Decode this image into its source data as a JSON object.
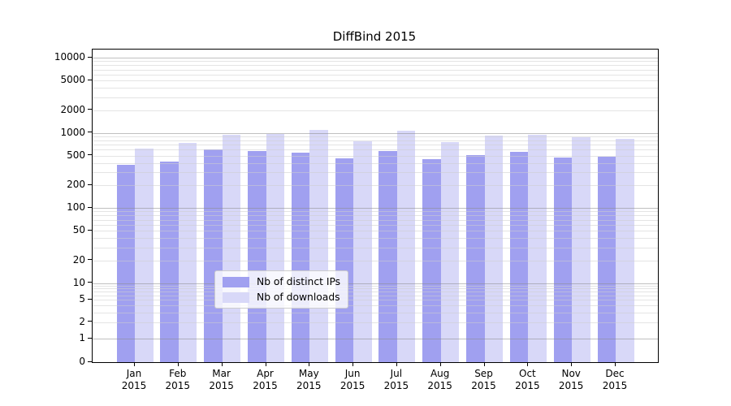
{
  "title": "DiffBind 2015",
  "legend": {
    "items": [
      {
        "label": "Nb of distinct IPs",
        "color": "#a0a0f0"
      },
      {
        "label": "Nb of downloads",
        "color": "#d8d8f8"
      }
    ]
  },
  "colors": {
    "ips_bar": "#a0a0f0",
    "downloads_bar": "#d8d8f8",
    "axis": "#000000",
    "major_grid": "#8c8c8c",
    "minor_grid": "#cdcdcd",
    "background": "#ffffff"
  },
  "chart_data": {
    "type": "bar",
    "title": "DiffBind 2015",
    "xlabel": "",
    "ylabel": "",
    "yscale": "symlog",
    "grid": true,
    "legend_position": "inside-bottom-center",
    "categories": [
      "Jan",
      "Feb",
      "Mar",
      "Apr",
      "May",
      "Jun",
      "Jul",
      "Aug",
      "Sep",
      "Oct",
      "Nov",
      "Dec"
    ],
    "year": "2015",
    "series": [
      {
        "name": "Nb of distinct IPs",
        "color": "#a0a0f0",
        "values": [
          380,
          420,
          600,
          580,
          545,
          465,
          570,
          450,
          505,
          565,
          470,
          480
        ]
      },
      {
        "name": "Nb of downloads",
        "color": "#d8d8f8",
        "values": [
          625,
          735,
          950,
          975,
          1090,
          770,
          1080,
          755,
          920,
          950,
          870,
          830
        ]
      }
    ],
    "yticks": [
      0,
      1,
      2,
      5,
      10,
      20,
      50,
      100,
      200,
      500,
      1000,
      2000,
      5000,
      10000
    ],
    "ylim": [
      0,
      12600
    ]
  }
}
